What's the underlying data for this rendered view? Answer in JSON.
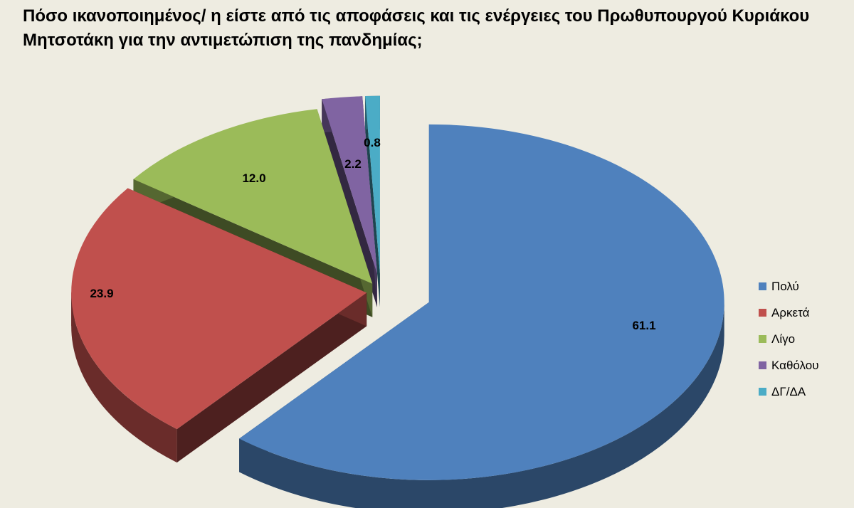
{
  "chart_data": {
    "type": "pie",
    "title": "Πόσο ικανοποιημένος/ η είστε από τις αποφάσεις και τις ενέργειες του Πρωθυπουργού Κυριάκου Μητσοτάκη  για την αντιμετώπιση της πανδημίας;",
    "style": "3d-exploded",
    "legend_position": "right",
    "slices": [
      {
        "label": "Πολύ",
        "value": 61.1,
        "value_label": "61.1",
        "color": "#4f81bd"
      },
      {
        "label": "Αρκετά",
        "value": 23.9,
        "value_label": "23.9",
        "color": "#c0504d"
      },
      {
        "label": "Λίγο",
        "value": 12.0,
        "value_label": "12.0",
        "color": "#9bbb59"
      },
      {
        "label": "Καθόλου",
        "value": 2.2,
        "value_label": "2.2",
        "color": "#8064a2"
      },
      {
        "label": "ΔΓ/ΔΑ",
        "value": 0.8,
        "value_label": "0.8",
        "color": "#4bacc6"
      }
    ]
  }
}
